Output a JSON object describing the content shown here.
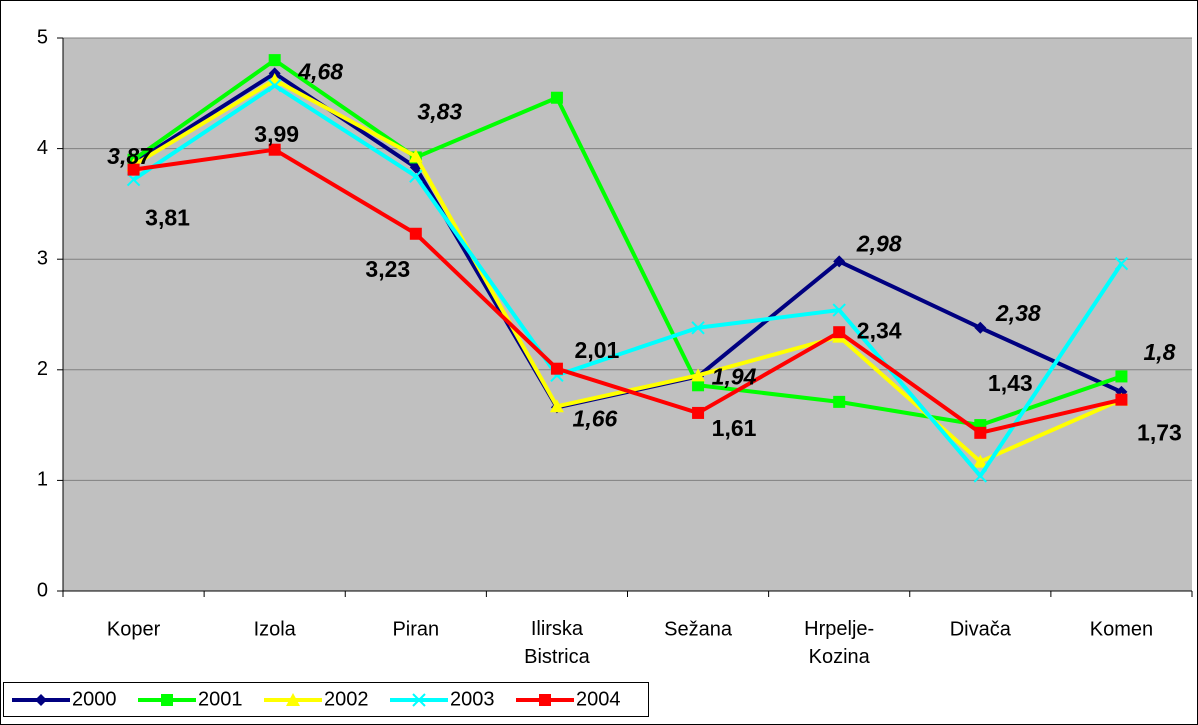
{
  "chart_data": {
    "type": "line",
    "categories": [
      "Koper",
      "Izola",
      "Piran",
      "Ilirska Bistrica",
      "Sežana",
      "Hrpelje-Kozina",
      "Divača",
      "Komen"
    ],
    "series": [
      {
        "name": "2000",
        "color": "#000080",
        "marker": "diamond",
        "values": [
          3.87,
          4.68,
          3.83,
          1.66,
          1.94,
          2.98,
          2.38,
          1.8
        ],
        "value_labels": [
          "3,87",
          "4,68",
          "3,83",
          "1,66",
          "1,94",
          "2,98",
          "2,38",
          "1,8"
        ]
      },
      {
        "name": "2001",
        "color": "#00ff00",
        "marker": "square",
        "values": [
          3.9,
          4.8,
          3.92,
          4.46,
          1.86,
          1.71,
          1.5,
          1.94
        ]
      },
      {
        "name": "2002",
        "color": "#ffff00",
        "marker": "triangle",
        "values": [
          3.85,
          4.62,
          3.93,
          1.67,
          1.95,
          2.3,
          1.17,
          1.73
        ]
      },
      {
        "name": "2003",
        "color": "#00ffff",
        "marker": "x",
        "values": [
          3.72,
          4.57,
          3.75,
          1.95,
          2.38,
          2.54,
          1.04,
          2.96
        ]
      },
      {
        "name": "2004",
        "color": "#ff0000",
        "marker": "square",
        "values": [
          3.81,
          3.99,
          3.23,
          2.01,
          1.61,
          2.34,
          1.43,
          1.73
        ],
        "value_labels": [
          "3,81",
          "3,99",
          "3,23",
          "2,01",
          "1,61",
          "2,34",
          "1,43",
          "1,73"
        ]
      }
    ],
    "ylim": [
      0,
      5
    ],
    "yticks": [
      0,
      1,
      2,
      3,
      4,
      5
    ],
    "grid": true,
    "legend": "bottom-left"
  }
}
